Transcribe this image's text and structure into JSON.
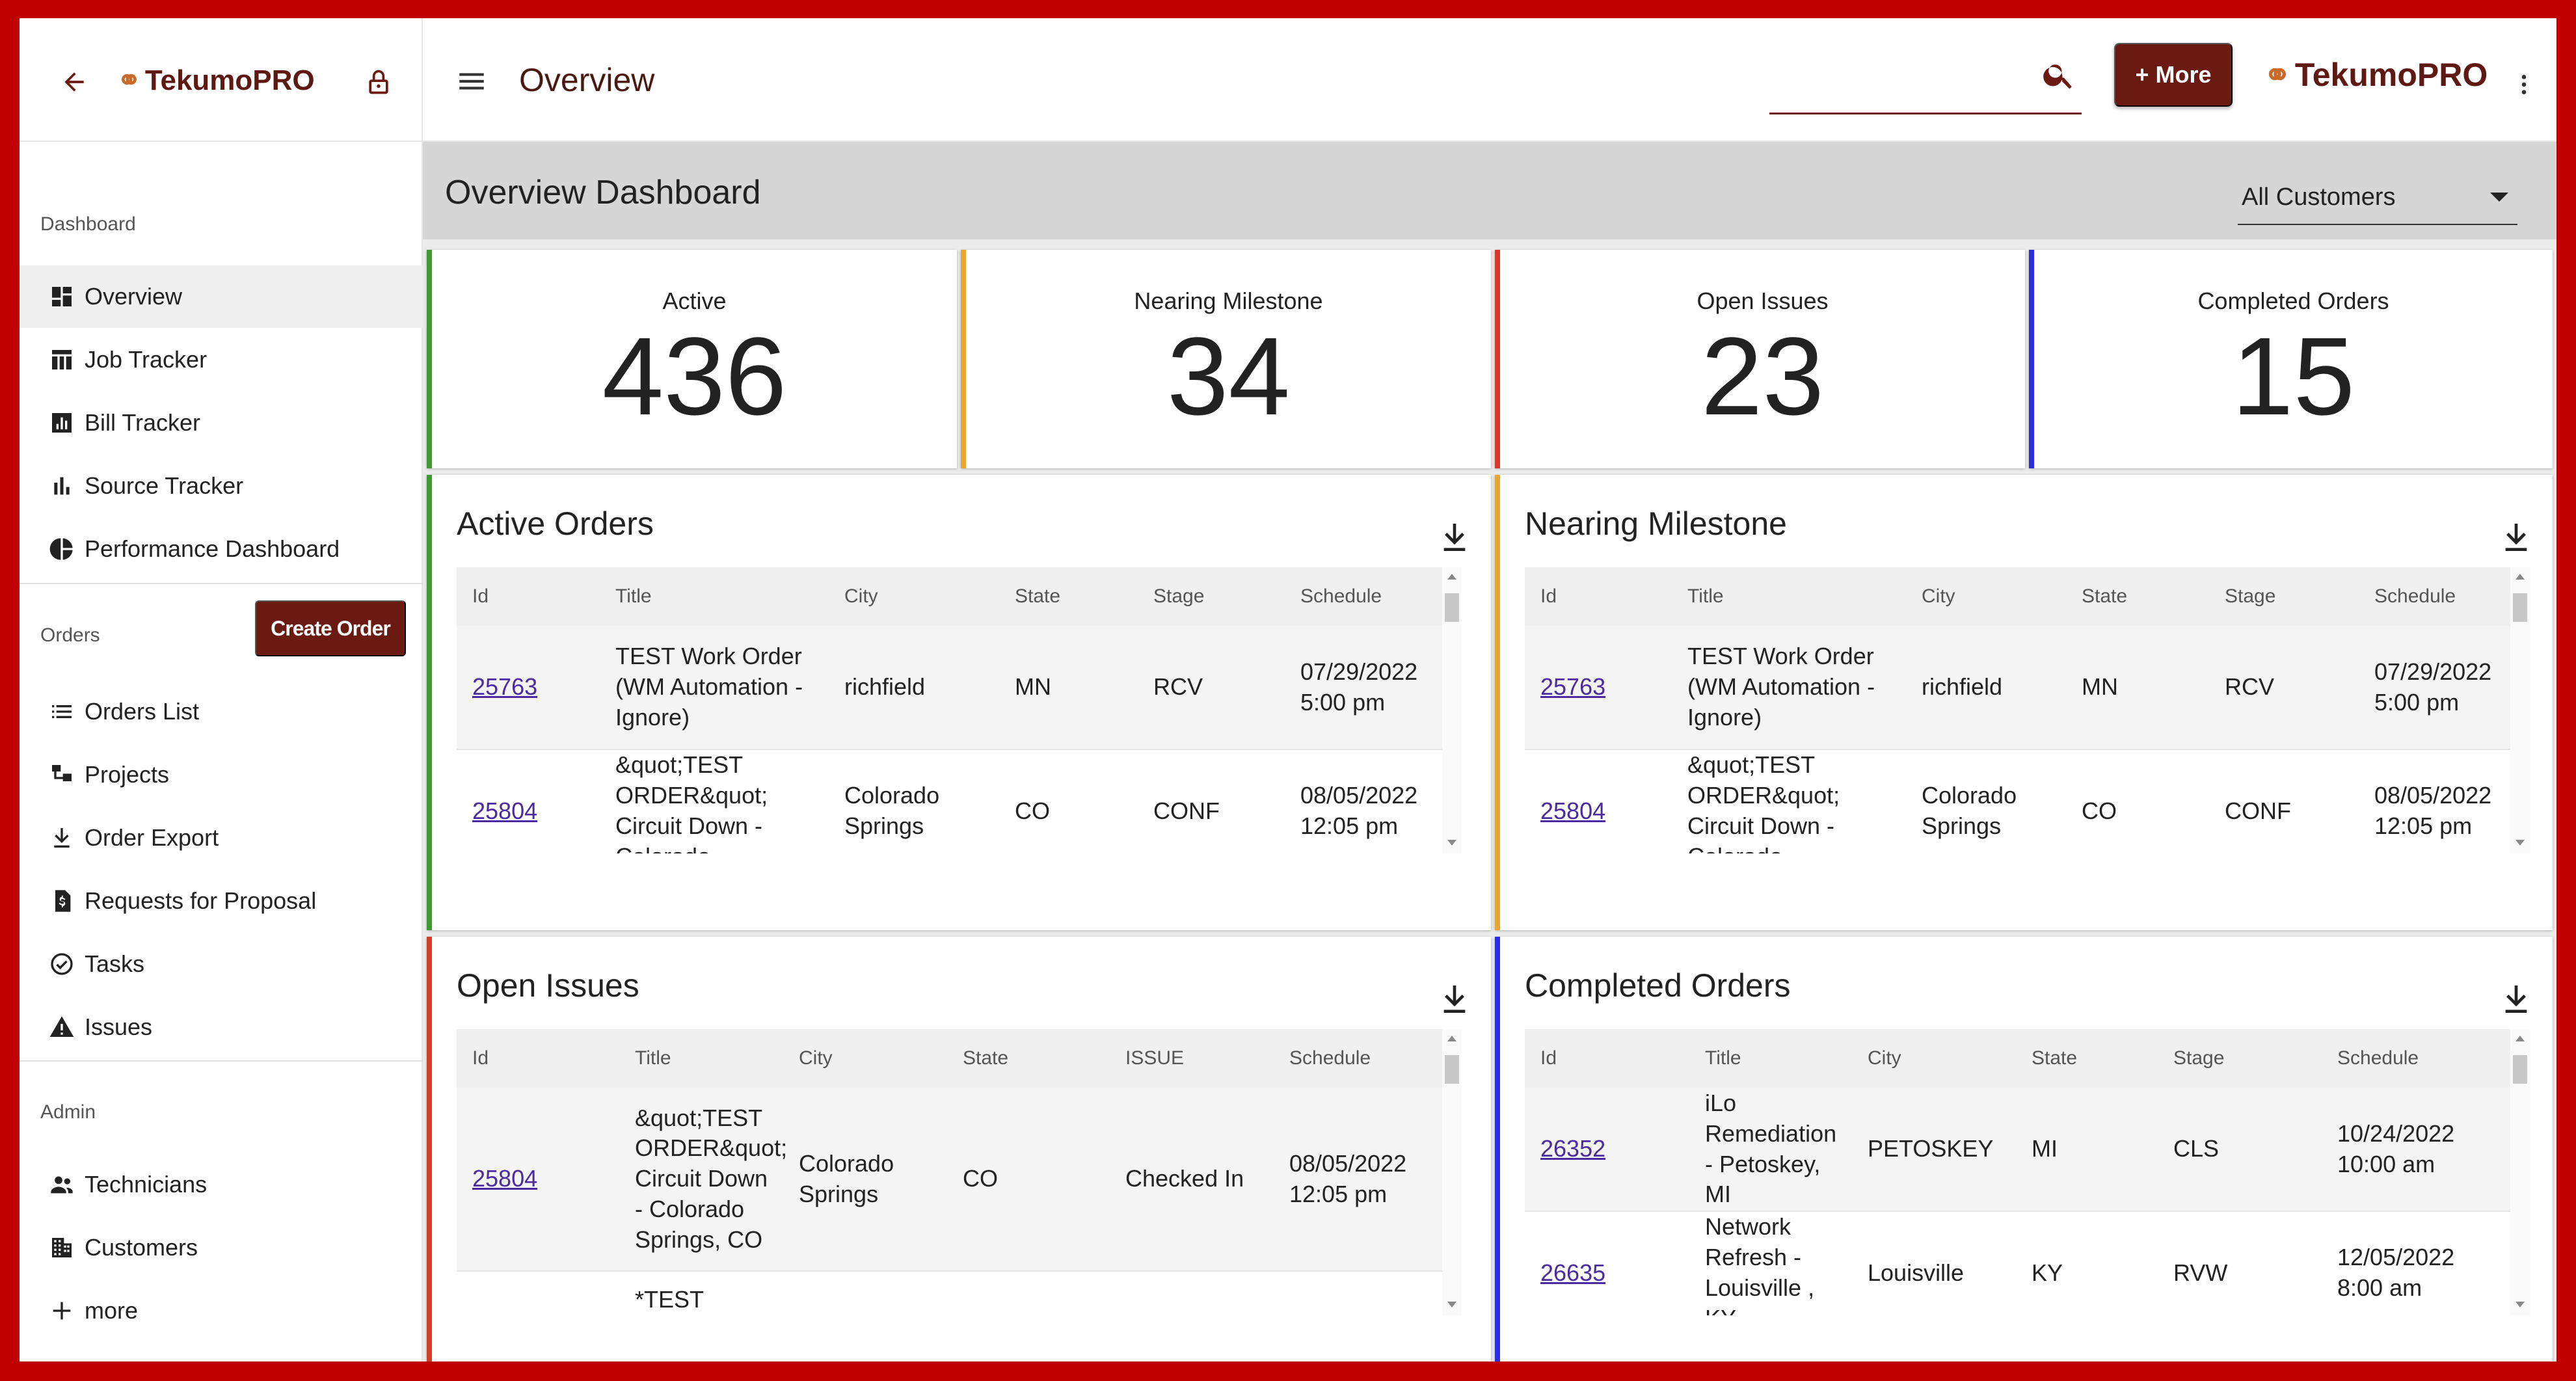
{
  "app": {
    "logo_text": "TekumoPRO",
    "page_title": "Overview"
  },
  "topbar": {
    "search_placeholder": "",
    "search_value": "",
    "more_label": "+ More"
  },
  "sidebar": {
    "sections": [
      {
        "label": "Dashboard"
      },
      {
        "label": "Orders"
      },
      {
        "label": "Admin"
      }
    ],
    "dashboard_items": [
      {
        "label": "Overview",
        "icon": "dashboard-icon",
        "active": true
      },
      {
        "label": "Job Tracker",
        "icon": "table-icon"
      },
      {
        "label": "Bill Tracker",
        "icon": "bar-chart-icon"
      },
      {
        "label": "Source Tracker",
        "icon": "signal-icon"
      },
      {
        "label": "Performance Dashboard",
        "icon": "pie-chart-icon"
      }
    ],
    "create_order_label": "Create Order",
    "order_items": [
      {
        "label": "Orders List",
        "icon": "list-icon"
      },
      {
        "label": "Projects",
        "icon": "projects-icon"
      },
      {
        "label": "Order Export",
        "icon": "download-icon"
      },
      {
        "label": "Requests for Proposal",
        "icon": "dollar-doc-icon"
      },
      {
        "label": "Tasks",
        "icon": "check-circle-icon"
      },
      {
        "label": "Issues",
        "icon": "warning-icon"
      }
    ],
    "admin_items": [
      {
        "label": "Technicians",
        "icon": "people-icon"
      },
      {
        "label": "Customers",
        "icon": "building-icon"
      },
      {
        "label": "more",
        "icon": "plus-icon"
      }
    ]
  },
  "dashboard": {
    "title": "Overview Dashboard",
    "customer_filter": "All Customers",
    "stats": [
      {
        "label": "Active",
        "value": "436",
        "color": "#3e9a2e"
      },
      {
        "label": "Nearing Milestone",
        "value": "34",
        "color": "#e8a530"
      },
      {
        "label": "Open Issues",
        "value": "23",
        "color": "#d63b28"
      },
      {
        "label": "Completed Orders",
        "value": "15",
        "color": "#2b2ee0"
      }
    ]
  },
  "panels": {
    "active_orders": {
      "title": "Active Orders",
      "columns": [
        "Id",
        "Title",
        "City",
        "State",
        "Stage",
        "Schedule"
      ],
      "rows": [
        {
          "id": "25763",
          "title": "TEST Work Order (WM Automation - Ignore)",
          "city": "richfield",
          "state": "MN",
          "stage": "RCV",
          "schedule": "07/29/2022 5:00 pm"
        },
        {
          "id": "25804",
          "title": "&quot;TEST ORDER&quot; Circuit Down - Colorado",
          "city": "Colorado Springs",
          "state": "CO",
          "stage": "CONF",
          "schedule": "08/05/2022 12:05 pm"
        }
      ]
    },
    "nearing_milestone": {
      "title": "Nearing Milestone",
      "columns": [
        "Id",
        "Title",
        "City",
        "State",
        "Stage",
        "Schedule"
      ],
      "rows": [
        {
          "id": "25763",
          "title": "TEST Work Order (WM Automation - Ignore)",
          "city": "richfield",
          "state": "MN",
          "stage": "RCV",
          "schedule": "07/29/2022 5:00 pm"
        },
        {
          "id": "25804",
          "title": "&quot;TEST ORDER&quot; Circuit Down - Colorado",
          "city": "Colorado Springs",
          "state": "CO",
          "stage": "CONF",
          "schedule": "08/05/2022 12:05 pm"
        }
      ]
    },
    "open_issues": {
      "title": "Open Issues",
      "columns": [
        "Id",
        "Title",
        "City",
        "State",
        "ISSUE",
        "Schedule"
      ],
      "rows": [
        {
          "id": "25804",
          "title": "&quot;TEST ORDER&quot; Circuit Down - Colorado Springs, CO",
          "city": "Colorado Springs",
          "state": "CO",
          "stage": "Checked In",
          "schedule": "08/05/2022 12:05 pm"
        },
        {
          "id": "",
          "title": "*TEST",
          "city": "",
          "state": "",
          "stage": "",
          "schedule": ""
        }
      ]
    },
    "completed_orders": {
      "title": "Completed Orders",
      "columns": [
        "Id",
        "Title",
        "City",
        "State",
        "Stage",
        "Schedule"
      ],
      "rows": [
        {
          "id": "26352",
          "title": "iLo Remediation - Petoskey, MI",
          "city": "PETOSKEY",
          "state": "MI",
          "stage": "CLS",
          "schedule": "10/24/2022 10:00 am"
        },
        {
          "id": "26635",
          "title": "Network Refresh - Louisville , KY",
          "city": "Louisville",
          "state": "KY",
          "stage": "RVW",
          "schedule": "12/05/2022 8:00 am"
        }
      ]
    }
  }
}
